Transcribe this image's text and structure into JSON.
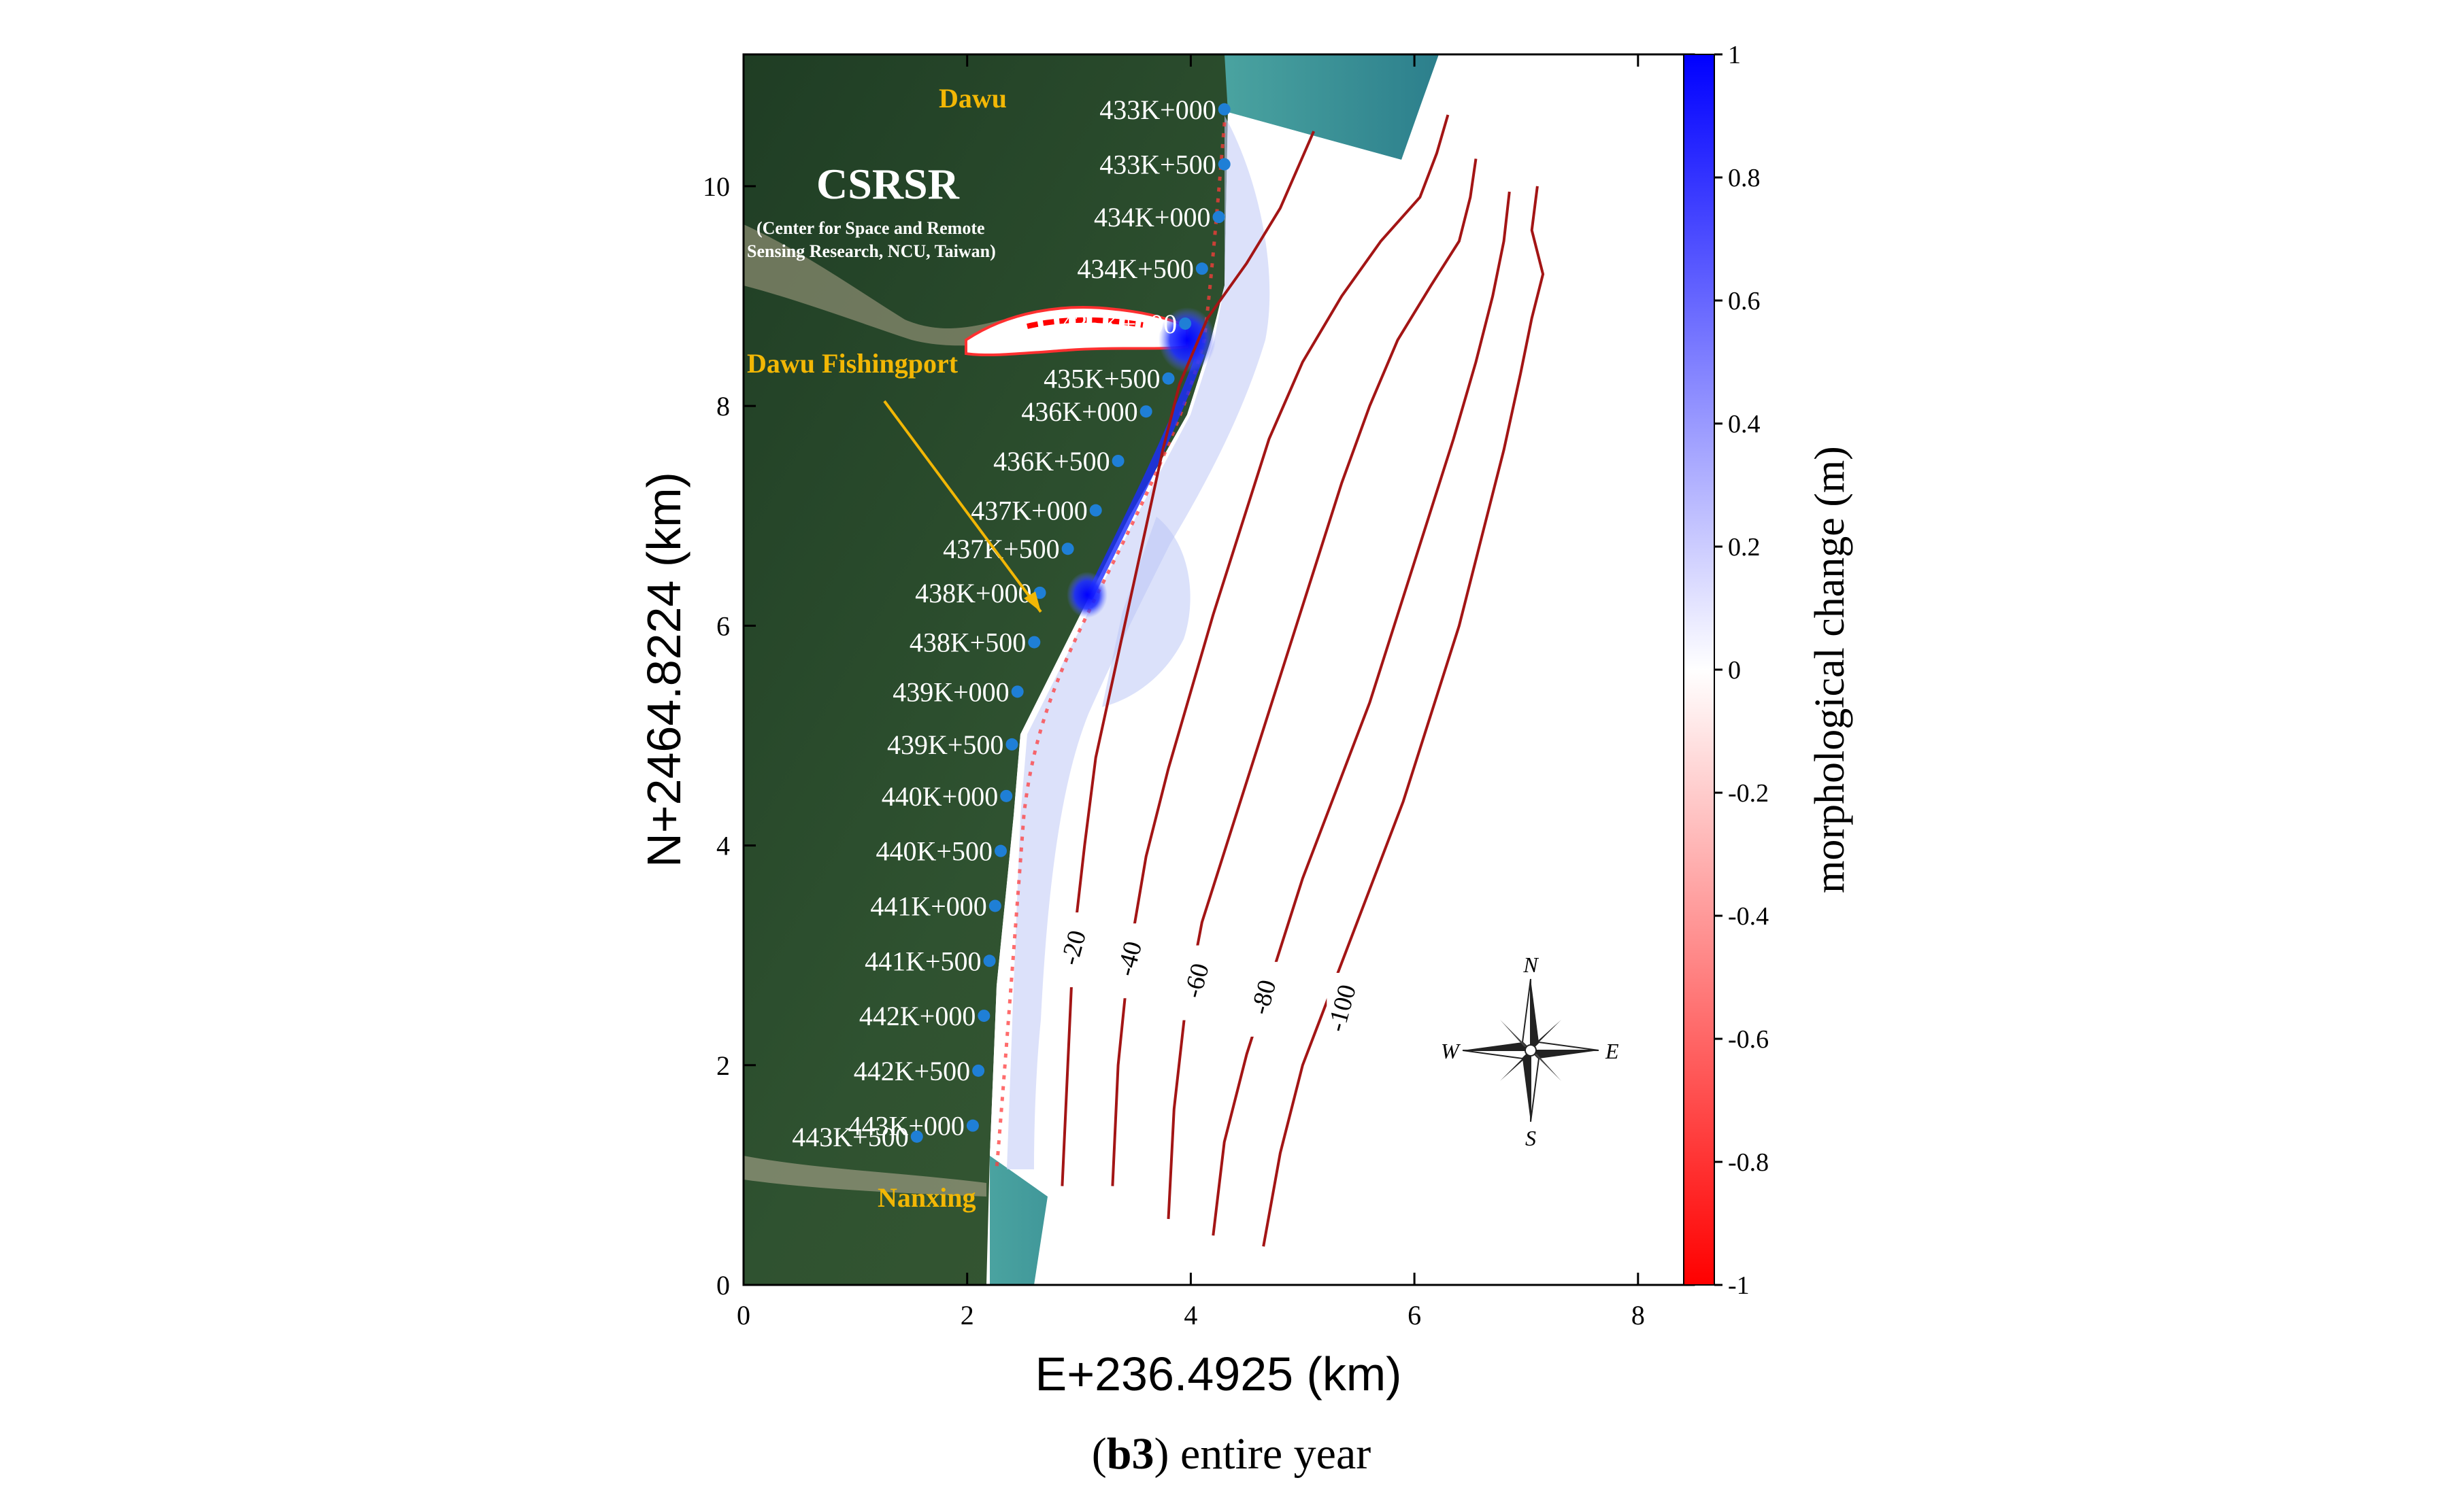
{
  "chart_data": {
    "type": "heatmap",
    "title": "",
    "caption": {
      "label": "b3",
      "text": "entire year"
    },
    "xlabel": "E+236.4925 (km)",
    "ylabel": "N+2464.8224 (km)",
    "xlim": [
      0,
      8.5
    ],
    "ylim": [
      0,
      11.2
    ],
    "xticks": [
      0,
      2,
      4,
      6,
      8
    ],
    "yticks": [
      0,
      2,
      4,
      6,
      8,
      10
    ],
    "grid": false,
    "colorbar": {
      "label": "morphological change (m)",
      "range": [
        -1,
        1
      ],
      "ticks": [
        1,
        0.8,
        0.6,
        0.4,
        0.2,
        0,
        -0.2,
        -0.4,
        -0.6,
        -0.8,
        -1
      ],
      "tick_labels": [
        "1",
        "0.8",
        "0.6",
        "0.4",
        "0.2",
        "0",
        "-0.2",
        "-0.4",
        "-0.6",
        "-0.8",
        "-1"
      ],
      "colormap": {
        "negative": "#ff0000",
        "zero": "#ffffff",
        "positive": "#0000ff"
      }
    },
    "places": [
      {
        "name": "Dawu",
        "x": 2.2,
        "y": 10.65
      },
      {
        "name": "Nanxing",
        "x": 1.85,
        "y": 0.75
      },
      {
        "name": "Dawu Fishingport",
        "x": 1.15,
        "y": 8.2,
        "arrow_to": [
          2.8,
          6.05
        ]
      }
    ],
    "agency": {
      "name": "CSRSR",
      "detail_line1": "(Center for Space and Remote",
      "detail_line2": "Sensing Research, NCU, Taiwan)"
    },
    "stations": [
      {
        "label": "433K+000",
        "x": 4.3,
        "y": 10.7
      },
      {
        "label": "433K+500",
        "x": 4.3,
        "y": 10.2
      },
      {
        "label": "434K+000",
        "x": 4.25,
        "y": 9.72
      },
      {
        "label": "434K+500",
        "x": 4.1,
        "y": 9.25
      },
      {
        "label": "435K+000",
        "x": 3.95,
        "y": 8.75
      },
      {
        "label": "435K+500",
        "x": 3.8,
        "y": 8.25
      },
      {
        "label": "436K+000",
        "x": 3.6,
        "y": 7.95
      },
      {
        "label": "436K+500",
        "x": 3.35,
        "y": 7.5
      },
      {
        "label": "437K+000",
        "x": 3.15,
        "y": 7.05
      },
      {
        "label": "437K+500",
        "x": 2.9,
        "y": 6.7
      },
      {
        "label": "438K+000",
        "x": 2.65,
        "y": 6.3
      },
      {
        "label": "438K+500",
        "x": 2.6,
        "y": 5.85
      },
      {
        "label": "439K+000",
        "x": 2.45,
        "y": 5.4
      },
      {
        "label": "439K+500",
        "x": 2.4,
        "y": 4.92
      },
      {
        "label": "440K+000",
        "x": 2.35,
        "y": 4.45
      },
      {
        "label": "440K+500",
        "x": 2.3,
        "y": 3.95
      },
      {
        "label": "441K+000",
        "x": 2.25,
        "y": 3.45
      },
      {
        "label": "441K+500",
        "x": 2.2,
        "y": 2.95
      },
      {
        "label": "442K+000",
        "x": 2.15,
        "y": 2.45
      },
      {
        "label": "442K+500",
        "x": 2.1,
        "y": 1.95
      },
      {
        "label": "443K+000",
        "x": 2.05,
        "y": 1.45
      },
      {
        "label": "443K+500",
        "x": 1.55,
        "y": 1.35
      }
    ],
    "contours": [
      {
        "level": "-20",
        "label_at": [
          2.95,
          3.05
        ],
        "points": [
          [
            2.85,
            0.9
          ],
          [
            2.9,
            2.0
          ],
          [
            2.95,
            3.1
          ],
          [
            3.05,
            4.0
          ],
          [
            3.15,
            4.8
          ],
          [
            3.3,
            5.5
          ],
          [
            3.45,
            6.2
          ],
          [
            3.6,
            6.9
          ],
          [
            3.75,
            7.6
          ],
          [
            3.9,
            8.2
          ],
          [
            4.15,
            8.8
          ],
          [
            4.5,
            9.3
          ],
          [
            4.8,
            9.8
          ],
          [
            5.1,
            10.5
          ]
        ]
      },
      {
        "level": "-40",
        "label_at": [
          3.45,
          2.95
        ],
        "points": [
          [
            3.3,
            0.9
          ],
          [
            3.35,
            2.0
          ],
          [
            3.45,
            3.0
          ],
          [
            3.6,
            3.9
          ],
          [
            3.8,
            4.7
          ],
          [
            4.0,
            5.4
          ],
          [
            4.2,
            6.1
          ],
          [
            4.45,
            6.9
          ],
          [
            4.7,
            7.7
          ],
          [
            5.0,
            8.4
          ],
          [
            5.35,
            9.0
          ],
          [
            5.7,
            9.5
          ],
          [
            6.05,
            9.9
          ],
          [
            6.2,
            10.3
          ],
          [
            6.3,
            10.65
          ]
        ]
      },
      {
        "level": "-60",
        "label_at": [
          4.05,
          2.75
        ],
        "points": [
          [
            3.8,
            0.6
          ],
          [
            3.85,
            1.6
          ],
          [
            3.95,
            2.5
          ],
          [
            4.1,
            3.3
          ],
          [
            4.35,
            4.1
          ],
          [
            4.6,
            4.9
          ],
          [
            4.85,
            5.7
          ],
          [
            5.1,
            6.5
          ],
          [
            5.35,
            7.3
          ],
          [
            5.6,
            8.0
          ],
          [
            5.85,
            8.6
          ],
          [
            6.15,
            9.1
          ],
          [
            6.4,
            9.5
          ],
          [
            6.5,
            9.9
          ],
          [
            6.55,
            10.25
          ]
        ]
      },
      {
        "level": "-80",
        "label_at": [
          4.65,
          2.6
        ],
        "points": [
          [
            4.2,
            0.45
          ],
          [
            4.3,
            1.3
          ],
          [
            4.5,
            2.1
          ],
          [
            4.75,
            2.9
          ],
          [
            5.0,
            3.7
          ],
          [
            5.3,
            4.5
          ],
          [
            5.6,
            5.3
          ],
          [
            5.85,
            6.1
          ],
          [
            6.1,
            6.9
          ],
          [
            6.35,
            7.7
          ],
          [
            6.55,
            8.4
          ],
          [
            6.7,
            9.0
          ],
          [
            6.8,
            9.5
          ],
          [
            6.85,
            9.95
          ]
        ]
      },
      {
        "level": "-100",
        "label_at": [
          5.35,
          2.5
        ],
        "points": [
          [
            4.65,
            0.35
          ],
          [
            4.8,
            1.2
          ],
          [
            5.0,
            2.0
          ],
          [
            5.3,
            2.8
          ],
          [
            5.6,
            3.6
          ],
          [
            5.9,
            4.4
          ],
          [
            6.15,
            5.2
          ],
          [
            6.4,
            6.0
          ],
          [
            6.6,
            6.8
          ],
          [
            6.8,
            7.6
          ],
          [
            6.95,
            8.3
          ],
          [
            7.05,
            8.8
          ],
          [
            7.15,
            9.2
          ],
          [
            7.05,
            9.6
          ],
          [
            7.1,
            10.0
          ]
        ]
      }
    ],
    "compass": {
      "N": "N",
      "S": "S",
      "E": "E",
      "W": "W"
    }
  },
  "colors": {
    "contour": "#a31515",
    "station_dot": "#1f7fd6",
    "place_label": "#f2b705",
    "land": "#2c4a2c",
    "sea": "#3a8f98"
  }
}
